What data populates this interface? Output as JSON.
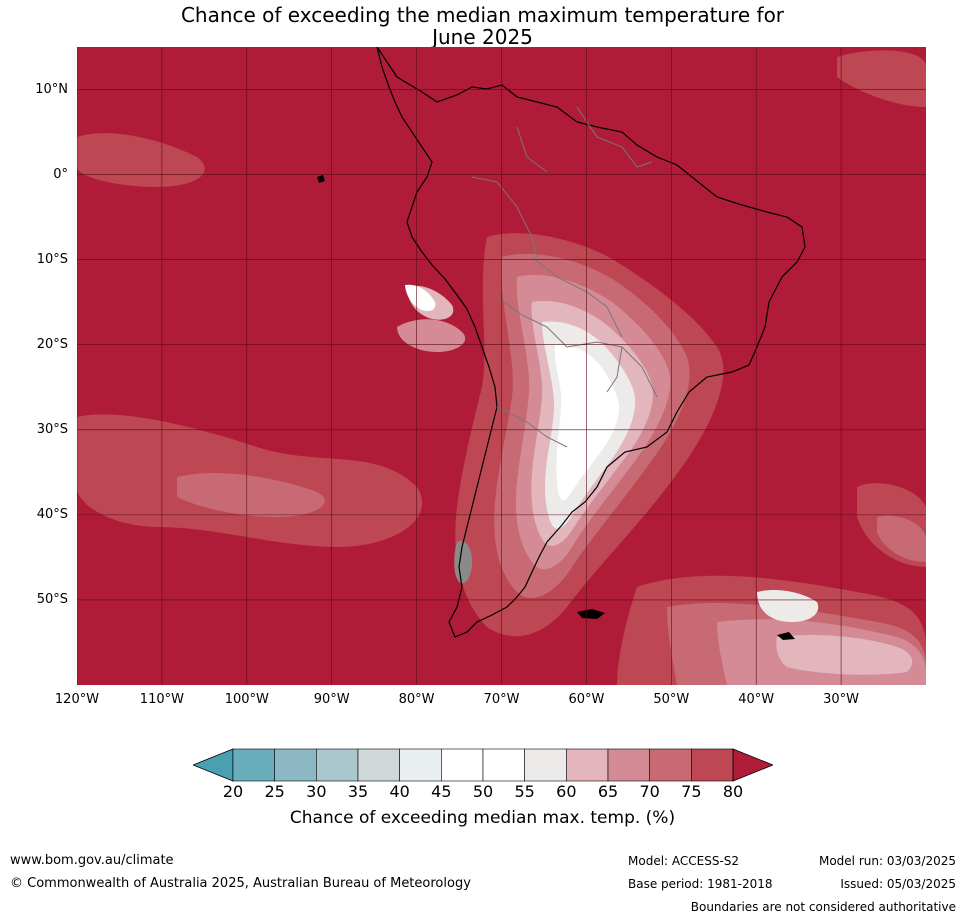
{
  "title_line1": "Chance of exceeding the median maximum temperature for",
  "title_line2": "June 2025",
  "map": {
    "lon_range": [
      -120,
      -20
    ],
    "lat_range": [
      -60,
      15
    ],
    "background_class_color": "#b01c37",
    "lat_labels": [
      {
        "lat": 10,
        "text": "10°N"
      },
      {
        "lat": 0,
        "text": "0°"
      },
      {
        "lat": -10,
        "text": "10°S"
      },
      {
        "lat": -20,
        "text": "20°S"
      },
      {
        "lat": -30,
        "text": "30°S"
      },
      {
        "lat": -40,
        "text": "40°S"
      },
      {
        "lat": -50,
        "text": "50°S"
      }
    ],
    "lon_labels": [
      {
        "lon": -120,
        "text": "120°W"
      },
      {
        "lon": -110,
        "text": "110°W"
      },
      {
        "lon": -100,
        "text": "100°W"
      },
      {
        "lon": -90,
        "text": "90°W"
      },
      {
        "lon": -80,
        "text": "80°W"
      },
      {
        "lon": -70,
        "text": "70°W"
      },
      {
        "lon": -60,
        "text": "60°W"
      },
      {
        "lon": -50,
        "text": "50°W"
      },
      {
        "lon": -40,
        "text": "40°W"
      },
      {
        "lon": -30,
        "text": "30°W"
      }
    ]
  },
  "colorbar": {
    "ticks": [
      "20",
      "25",
      "30",
      "35",
      "40",
      "45",
      "50",
      "55",
      "60",
      "65",
      "70",
      "75",
      "80"
    ],
    "below_color": "#4aa0b0",
    "above_color": "#b01c37",
    "bin_colors": [
      "#6aadbc",
      "#8bb8c4",
      "#a9c7cd",
      "#cfd7d9",
      "#e9eff1",
      "#ffffff",
      "#ffffff",
      "#ecebea",
      "#e2b6bc",
      "#d48b95",
      "#c76a74",
      "#bd4753"
    ],
    "label": "Chance of exceeding median max. temp. (%)"
  },
  "footer": {
    "website": "www.bom.gov.au/climate",
    "copyright": "© Commonwealth of Australia 2025, Australian Bureau of Meteorology",
    "model": "Model: ACCESS-S2",
    "base_period": "Base period: 1981-2018",
    "model_run": "Model run: 03/03/2025",
    "issued": "Issued: 05/03/2025",
    "disclaimer": "Boundaries are not considered authoritative"
  }
}
